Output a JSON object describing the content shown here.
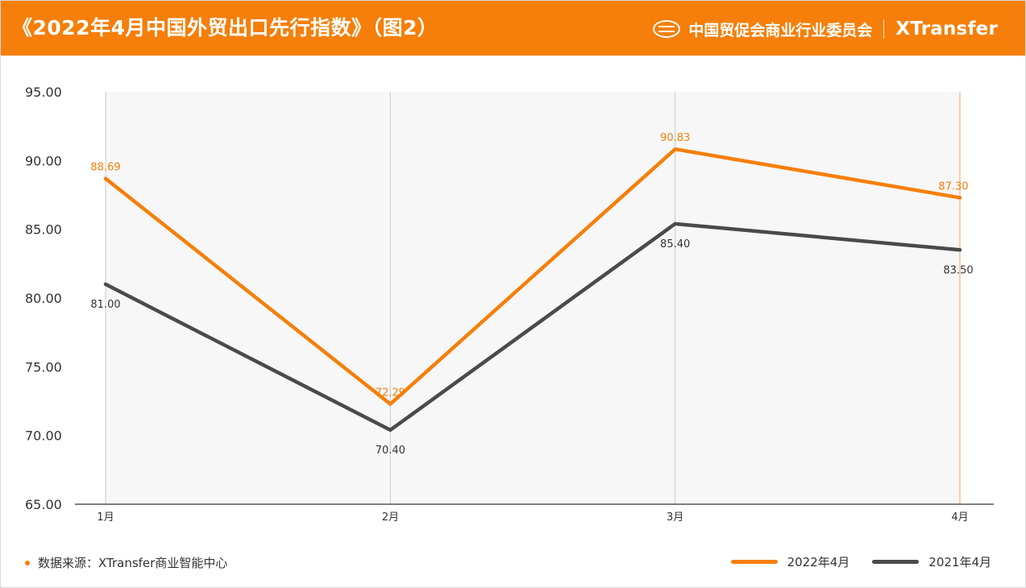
{
  "header": {
    "title": "《2022年4月中国外贸出口先行指数》（图2）",
    "org": "中国贸促会商业行业委员会",
    "partner": "XTransfer"
  },
  "footer": {
    "source": "数据来源：XTransfer商业智能中心"
  },
  "colors": {
    "accent": "#f57f0a",
    "series2022": "#f57f0a",
    "series2021": "#4a4a4a"
  },
  "chart_data": {
    "type": "line",
    "categories": [
      "1月",
      "2月",
      "3月",
      "4月"
    ],
    "series": [
      {
        "name": "2022年4月",
        "values": [
          88.69,
          72.29,
          90.83,
          87.3
        ],
        "labels": [
          "88.69",
          "72.29",
          "90.83",
          "87.30"
        ]
      },
      {
        "name": "2021年4月",
        "values": [
          81.0,
          70.4,
          85.4,
          83.5
        ],
        "labels": [
          "81.00",
          "70.40",
          "85.40",
          "83.50"
        ]
      }
    ],
    "y_ticks": [
      "95.00",
      "90.00",
      "85.00",
      "80.00",
      "75.00",
      "70.00",
      "65.00"
    ],
    "ylim": [
      65,
      95
    ],
    "legend": "bottom-right"
  }
}
